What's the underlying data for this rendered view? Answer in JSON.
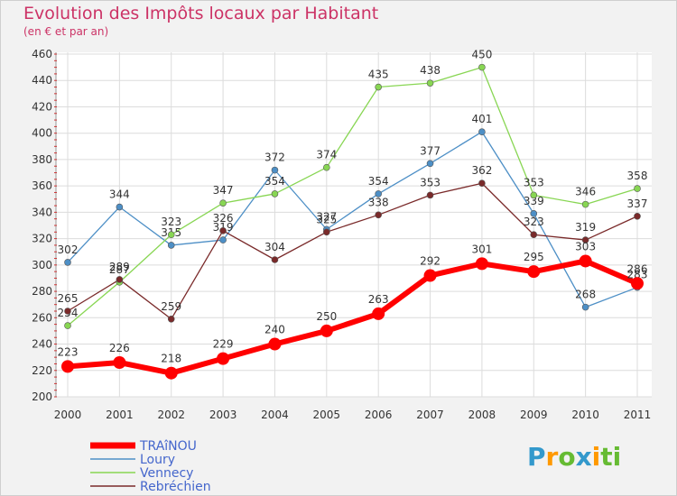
{
  "page": {
    "title": "Evolution des Impôts locaux par Habitant",
    "subtitle": "(en € et par an)",
    "logo": "Proxiti",
    "logo_letters": [
      "P",
      "r",
      "o",
      "x",
      "i",
      "ti"
    ]
  },
  "chart_data": {
    "type": "line",
    "title": "Evolution des Impôts locaux par Habitant",
    "subtitle": "(en € et par an)",
    "xlabel": "",
    "ylabel": "",
    "ylim": [
      200,
      460
    ],
    "yticks": [
      200,
      220,
      240,
      260,
      280,
      300,
      320,
      340,
      360,
      380,
      400,
      420,
      440,
      460
    ],
    "categories": [
      "2000",
      "2001",
      "2002",
      "2003",
      "2004",
      "2005",
      "2006",
      "2007",
      "2008",
      "2009",
      "2010",
      "2011"
    ],
    "grid": true,
    "legend_position": "bottom-left",
    "series": [
      {
        "name": "Loury",
        "color": "#4d8fc6",
        "values": [
          302,
          344,
          315,
          319,
          372,
          327,
          354,
          377,
          401,
          339,
          268,
          283
        ]
      },
      {
        "name": "Vennecy",
        "color": "#88d653",
        "values": [
          254,
          287,
          323,
          347,
          354,
          374,
          435,
          438,
          450,
          353,
          346,
          358
        ]
      },
      {
        "name": "Rebréchien",
        "color": "#7a2a2a",
        "values": [
          265,
          289,
          259,
          326,
          304,
          325,
          338,
          353,
          362,
          323,
          319,
          337
        ]
      },
      {
        "name": "TRAîNOU",
        "color": "#ff0000",
        "values": [
          223,
          226,
          218,
          229,
          240,
          250,
          263,
          292,
          301,
          295,
          303,
          286
        ]
      }
    ],
    "legend_order": [
      "TRAîNOU",
      "Loury",
      "Vennecy",
      "Rebréchien"
    ],
    "legend_colors": [
      "#ff0000",
      "#4d8fc6",
      "#88d653",
      "#7a2a2a"
    ]
  }
}
